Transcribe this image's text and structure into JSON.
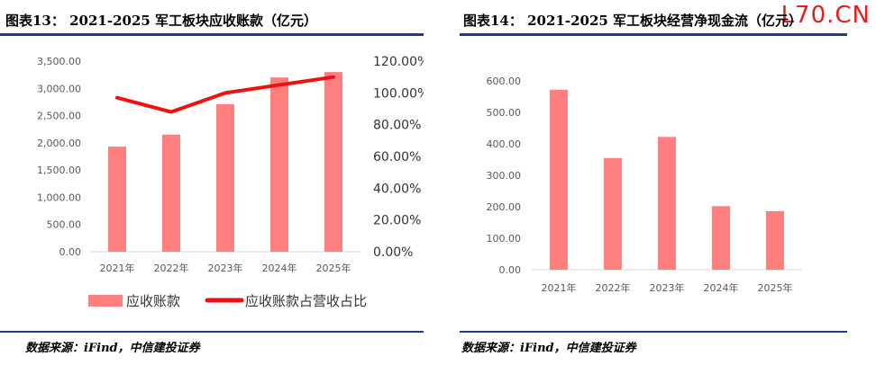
{
  "watermark": "L70.CN",
  "left_panel": {
    "title": "图表13：  2021-2025 军工板块应收账款（亿元）",
    "source": "数据来源：iFind，中信建投证券"
  },
  "right_panel": {
    "title": "图表14：  2021-2025 军工板块经营净现金流（亿元）",
    "source": "数据来源：iFind，中信建投证券"
  },
  "colors": {
    "bar": "#ff7f7f",
    "line": "#ee1111",
    "rule": "#1f3a93",
    "axis_text": "#595959"
  },
  "chart_data": [
    {
      "type": "bar",
      "categories": [
        "2021年",
        "2022年",
        "2023年",
        "2024年",
        "2025年"
      ],
      "series": [
        {
          "name": "应收账款",
          "type": "bar",
          "axis": "left",
          "values": [
            1930,
            2150,
            2710,
            3200,
            3300
          ]
        },
        {
          "name": "应收账款占营收占比",
          "type": "line",
          "axis": "right",
          "values": [
            97,
            88,
            100,
            105,
            110
          ]
        }
      ],
      "ylim": [
        0,
        3500
      ],
      "yticks": [
        "0.00",
        "500.00",
        "1,000.00",
        "1,500.00",
        "2,000.00",
        "2,500.00",
        "3,000.00",
        "3,500.00"
      ],
      "y2lim": [
        0,
        120
      ],
      "y2ticks": [
        "0.00%",
        "20.00%",
        "40.00%",
        "60.00%",
        "80.00%",
        "100.00%",
        "120.00%"
      ],
      "legend": "bottom",
      "grid": false
    },
    {
      "type": "bar",
      "categories": [
        "2021年",
        "2022年",
        "2023年",
        "2024年",
        "2025年"
      ],
      "series": [
        {
          "values": [
            572,
            355,
            422,
            202,
            186
          ]
        }
      ],
      "ylim": [
        0,
        600
      ],
      "yticks": [
        "0.00",
        "100.00",
        "200.00",
        "300.00",
        "400.00",
        "500.00",
        "600.00"
      ],
      "grid": false
    }
  ]
}
